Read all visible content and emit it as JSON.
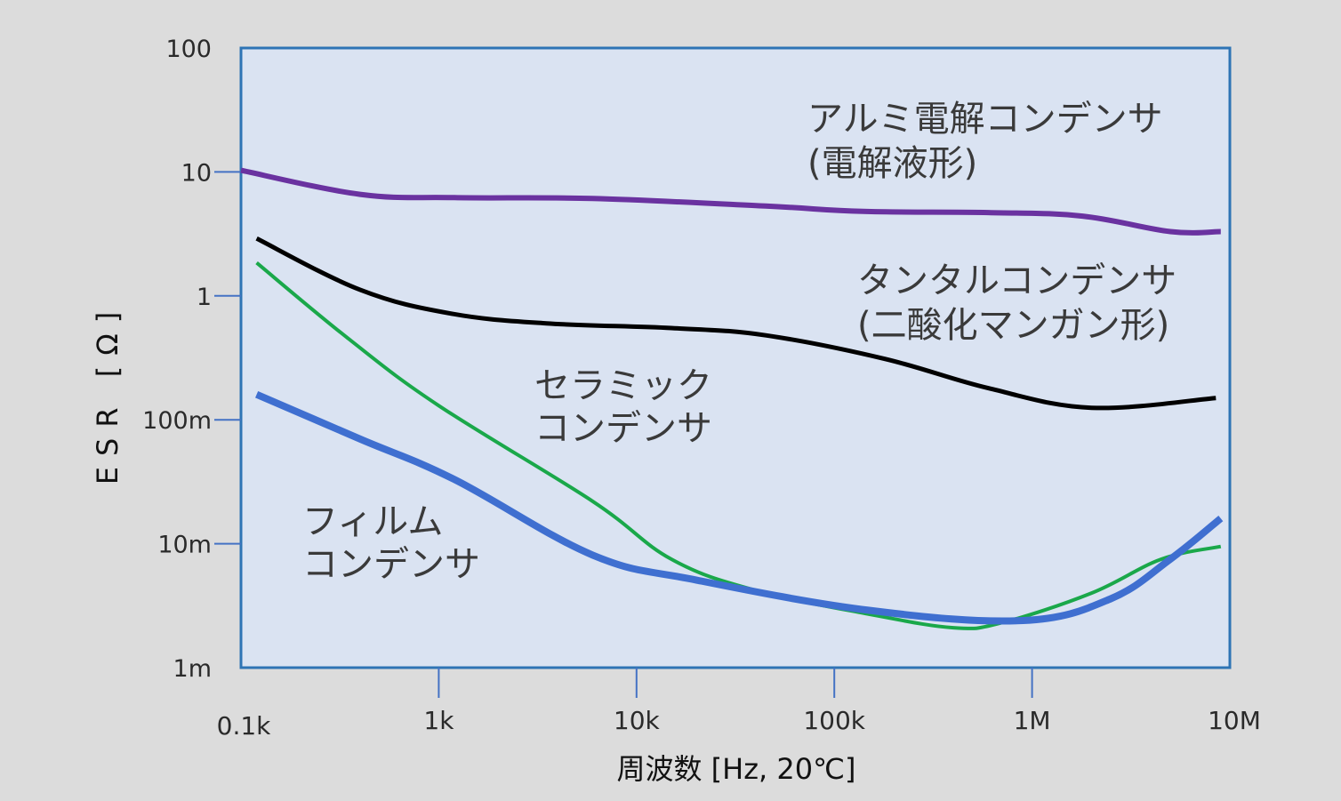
{
  "chart_data": {
    "type": "line",
    "xlabel": "周波数 [Hz, 20℃]",
    "ylabel": "ESR [Ω]",
    "x_scale": "log",
    "y_scale": "log",
    "xlim": [
      100,
      10000000
    ],
    "ylim": [
      0.001,
      100
    ],
    "x_ticks": [
      {
        "value": 100,
        "label": "0.1k"
      },
      {
        "value": 1000,
        "label": "1k"
      },
      {
        "value": 10000,
        "label": "10k"
      },
      {
        "value": 100000,
        "label": "100k"
      },
      {
        "value": 1000000,
        "label": "1M"
      },
      {
        "value": 10000000,
        "label": "10M"
      }
    ],
    "y_ticks": [
      {
        "value": 100,
        "label": "100"
      },
      {
        "value": 10,
        "label": "10"
      },
      {
        "value": 1,
        "label": "1"
      },
      {
        "value": 0.1,
        "label": "100m"
      },
      {
        "value": 0.01,
        "label": "10m"
      },
      {
        "value": 0.001,
        "label": "1m"
      }
    ],
    "series": [
      {
        "name": "アルミ電解コンデンサ(電解液形)",
        "label_lines": [
          "アルミ電解コンデンサ",
          "(電解液形)"
        ],
        "color": "#6a32a0",
        "points": [
          [
            100,
            10.3
          ],
          [
            400,
            6.6
          ],
          [
            1200,
            6.2
          ],
          [
            6000,
            6.1
          ],
          [
            45000,
            5.3
          ],
          [
            140000,
            4.8
          ],
          [
            600000,
            4.7
          ],
          [
            1800000,
            4.4
          ],
          [
            5000000,
            3.3
          ],
          [
            9000000,
            3.3
          ]
        ]
      },
      {
        "name": "タンタルコンデンサ(二酸化マンガン形)",
        "label_lines": [
          "タンタルコンデンサ",
          "(二酸化マンガン形)"
        ],
        "color": "#000000",
        "points": [
          [
            120,
            2.9
          ],
          [
            400,
            1.12
          ],
          [
            1150,
            0.72
          ],
          [
            3500,
            0.6
          ],
          [
            15000,
            0.55
          ],
          [
            45000,
            0.48
          ],
          [
            180000,
            0.31
          ],
          [
            600000,
            0.18
          ],
          [
            2000000,
            0.125
          ],
          [
            8500000,
            0.15
          ]
        ]
      },
      {
        "name": "セラミックコンデンサ",
        "label_lines": [
          "セラミック",
          "コンデンサ"
        ],
        "color": "#1aa84a",
        "points": [
          [
            120,
            1.85
          ],
          [
            350,
            0.45
          ],
          [
            1000,
            0.13
          ],
          [
            6000,
            0.022
          ],
          [
            15000,
            0.0075
          ],
          [
            40000,
            0.0042
          ],
          [
            150000,
            0.0027
          ],
          [
            400000,
            0.0021
          ],
          [
            700000,
            0.0023
          ],
          [
            2000000,
            0.004
          ],
          [
            4500000,
            0.0075
          ],
          [
            9000000,
            0.0095
          ]
        ]
      },
      {
        "name": "フィルムコンデンサ",
        "label_lines": [
          "フィルム",
          "コンデンサ"
        ],
        "color": "#3f6fd0",
        "points": [
          [
            120,
            0.16
          ],
          [
            400,
            0.07
          ],
          [
            1200,
            0.033
          ],
          [
            6000,
            0.0081
          ],
          [
            20000,
            0.0051
          ],
          [
            150000,
            0.0029
          ],
          [
            900000,
            0.0024
          ],
          [
            2500000,
            0.0036
          ],
          [
            5000000,
            0.0075
          ],
          [
            9000000,
            0.016
          ]
        ]
      }
    ]
  }
}
